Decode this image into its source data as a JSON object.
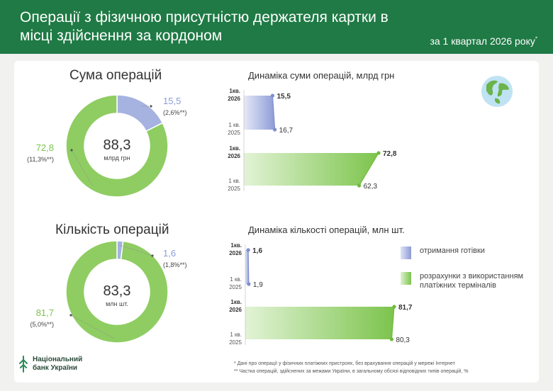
{
  "header": {
    "title": "Операції з фізичною присутністю держателя картки в місці здійснення за кордоном",
    "subtitle": "за 1 квартал 2026 року",
    "subtitle_mark": "*"
  },
  "colors": {
    "brand_green": "#1f7a45",
    "cash": "#a6b2e0",
    "terminals": "#8fcd62"
  },
  "icons": {
    "globe": "globe-icon",
    "logo": "nbu-logo-icon"
  },
  "sections": {
    "amount": {
      "title": "Сума операцій",
      "total": "88,3",
      "unit": "млрд грн"
    },
    "count": {
      "title": "Кількість операцій",
      "total": "83,3",
      "unit": "млн шт."
    }
  },
  "chart_data": [
    {
      "type": "pie",
      "categories": [
        "отримання готівки",
        "розрахунки з використанням платіжних терміналів"
      ],
      "values": [
        15.5,
        72.8
      ],
      "value_labels": [
        "15,5",
        "72,8"
      ],
      "share_labels": [
        "(2,6%**)",
        "(11,3%**)"
      ],
      "shares": [
        2.6,
        11.3
      ],
      "title": "Сума операцій",
      "center_value": "88,3",
      "center_unit": "млрд грн"
    },
    {
      "type": "bar",
      "title": "Динаміка суми операцій, млрд грн",
      "categories": [
        "1 кв. 2026",
        "1 кв. 2025"
      ],
      "series": [
        {
          "name": "отримання готівки",
          "values": [
            15.5,
            16.7
          ],
          "value_labels": [
            "15,5",
            "16,7"
          ]
        },
        {
          "name": "розрахунки з використанням платіжних терміналів",
          "values": [
            72.8,
            62.3
          ],
          "value_labels": [
            "72,8",
            "62,3"
          ]
        }
      ]
    },
    {
      "type": "pie",
      "categories": [
        "отримання готівки",
        "розрахунки з використанням платіжних терміналів"
      ],
      "values": [
        1.6,
        81.7
      ],
      "value_labels": [
        "1,6",
        "81,7"
      ],
      "share_labels": [
        "(1,8%**)",
        "(5,0%**)"
      ],
      "shares": [
        1.8,
        5.0
      ],
      "title": "Кількість операцій",
      "center_value": "83,3",
      "center_unit": "млн шт."
    },
    {
      "type": "bar",
      "title": "Динаміка кількості операцій, млн шт.",
      "categories": [
        "1 кв. 2026",
        "1 кв. 2025"
      ],
      "series": [
        {
          "name": "отримання готівки",
          "values": [
            1.6,
            1.9
          ],
          "value_labels": [
            "1,6",
            "1,9"
          ]
        },
        {
          "name": "розрахунки з використанням платіжних терміналів",
          "values": [
            81.7,
            80.3
          ],
          "value_labels": [
            "81,7",
            "80,3"
          ]
        }
      ]
    }
  ],
  "period_labels": {
    "current_line1": "1кв.",
    "current_line2": "2026",
    "previous_line1": "1 кв.",
    "previous_line2": "2025"
  },
  "legend": {
    "cash": "отримання готівки",
    "terminals": "розрахунки з використанням платіжних терміналів"
  },
  "logo": {
    "line1": "Національний",
    "line2": "банк України"
  },
  "footnotes": {
    "note1": "* Дані про операції у фізичних платіжних пристроях, без врахування операцій у мережі Інтернет",
    "note2": "** Частка операцій, здійснених за межами України, в загальному обсязі відповідних типів операцій, %"
  }
}
